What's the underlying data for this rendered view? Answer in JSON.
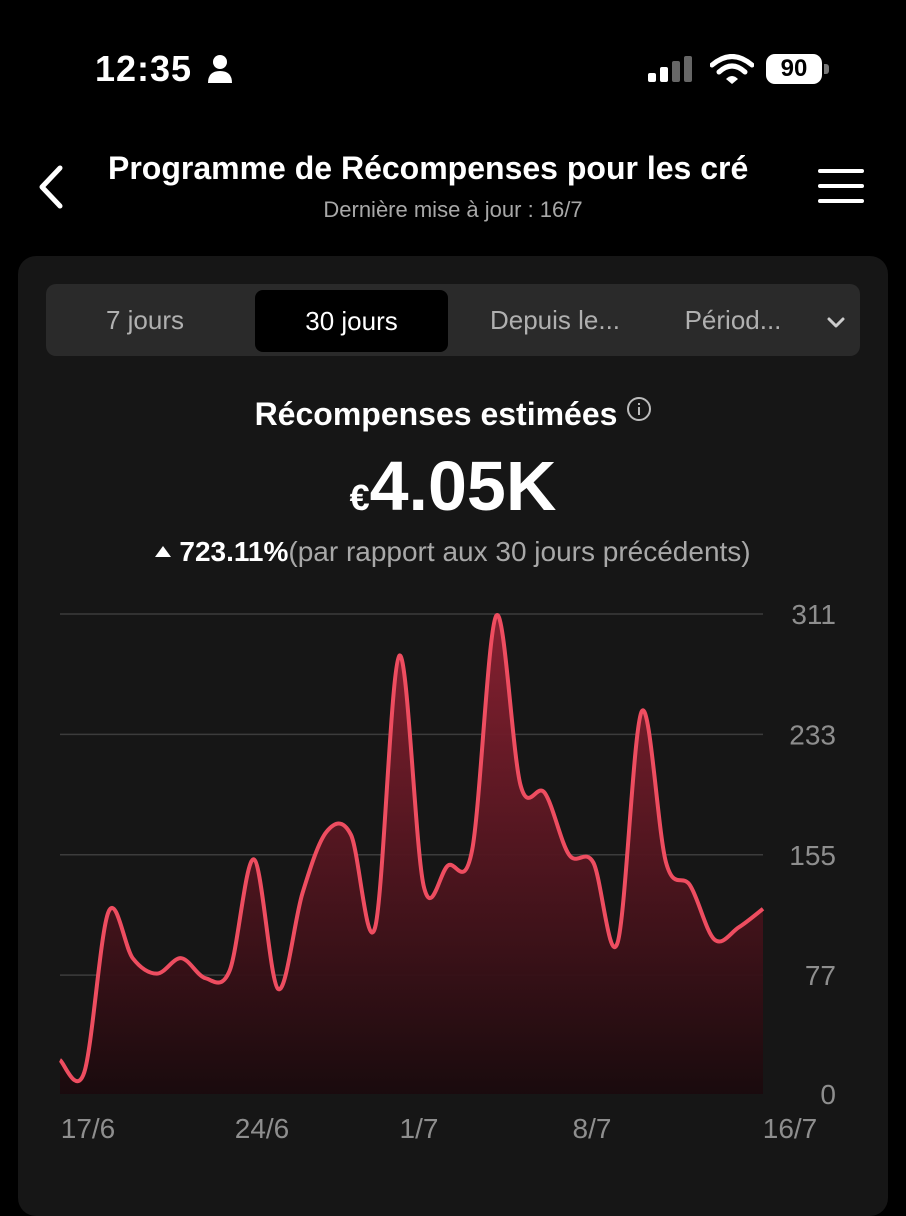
{
  "status_bar": {
    "time": "12:35",
    "battery": "90"
  },
  "header": {
    "title": "Programme de Récompenses pour les cré",
    "subtitle": "Dernière mise à jour : 16/7"
  },
  "tabs": [
    {
      "label": "7 jours",
      "active": false
    },
    {
      "label": "30 jours",
      "active": true
    },
    {
      "label": "Depuis le...",
      "active": false
    },
    {
      "label": "Périod...",
      "active": false
    }
  ],
  "summary": {
    "label": "Récompenses estimées",
    "currency": "€",
    "amount": "4.05K",
    "change": "723.11%",
    "comparison": "(par rapport aux 30 jours précédents)"
  },
  "chart_data": {
    "type": "area",
    "x_tick_labels": [
      "17/6",
      "24/6",
      "1/7",
      "8/7",
      "16/7"
    ],
    "y_tick_labels": [
      "311",
      "233",
      "155",
      "77",
      "0"
    ],
    "ylim": [
      0,
      311
    ],
    "grid": true,
    "color": "#ee4d60",
    "x": [
      "17/6",
      "18/6",
      "19/6",
      "20/6",
      "21/6",
      "22/6",
      "23/6",
      "24/6",
      "25/6",
      "26/6",
      "27/6",
      "28/6",
      "29/6",
      "30/6",
      "1/7",
      "2/7",
      "3/7",
      "4/7",
      "5/7",
      "6/7",
      "7/7",
      "8/7",
      "9/7",
      "10/7",
      "11/7",
      "12/7",
      "13/7",
      "14/7",
      "15/7",
      "16/7"
    ],
    "values": [
      22,
      14,
      118,
      88,
      78,
      88,
      75,
      80,
      152,
      68,
      130,
      170,
      168,
      108,
      284,
      135,
      148,
      158,
      310,
      200,
      195,
      155,
      150,
      98,
      248,
      150,
      135,
      100,
      108,
      120
    ]
  }
}
